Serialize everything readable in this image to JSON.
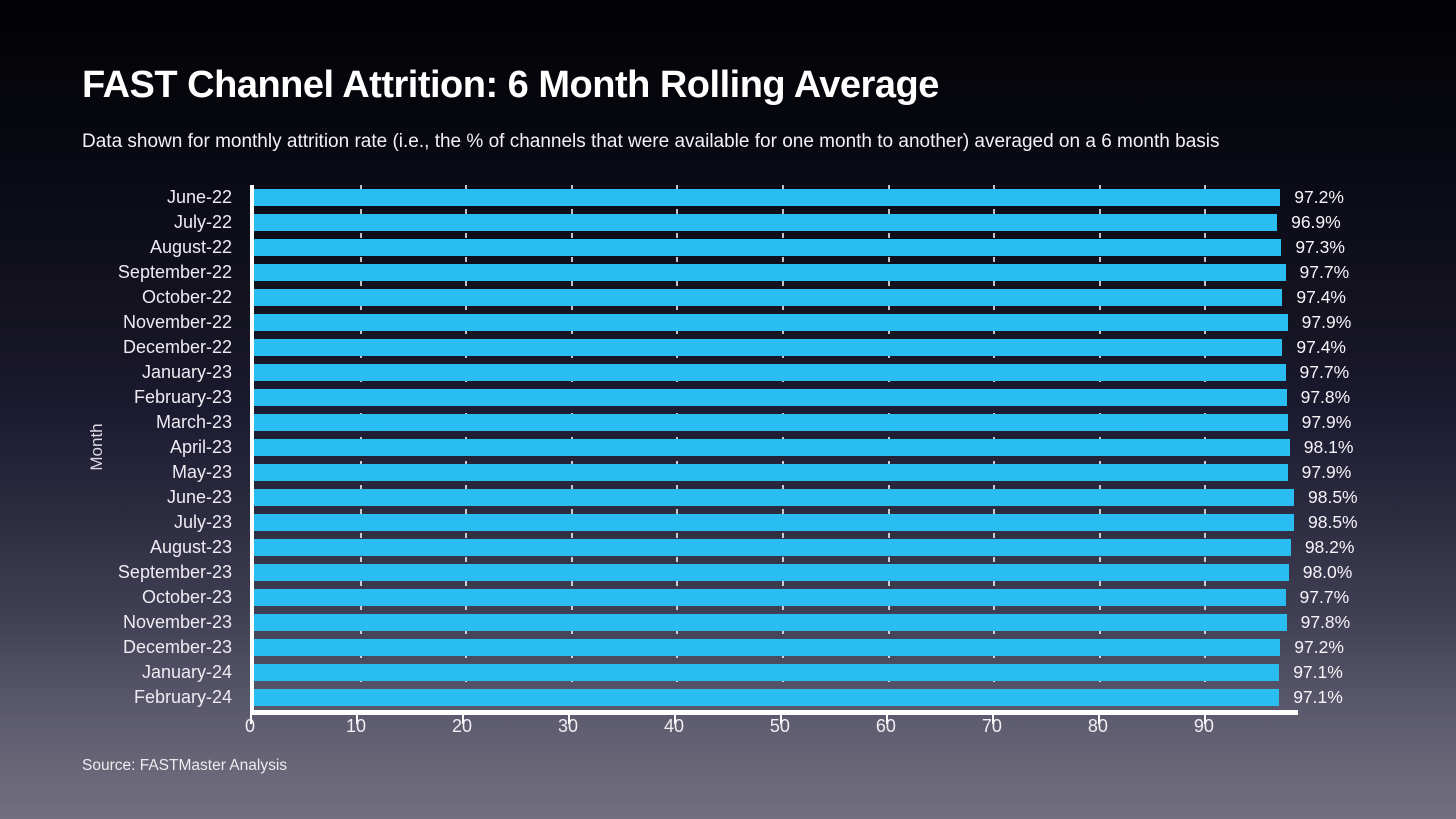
{
  "title": "FAST Channel Attrition: 6 Month Rolling Average",
  "subtitle": "Data shown for monthly attrition rate (i.e., the % of channels that were available for one month to another) averaged on a 6 month basis",
  "source": "Source: FASTMaster Analysis",
  "colors": {
    "bar": "#29bdf2",
    "axis": "#ffffff",
    "text": "#f2f1f5"
  },
  "chart_data": {
    "type": "bar",
    "orientation": "horizontal",
    "title": "FAST Channel Attrition: 6 Month Rolling Average",
    "xlabel": "",
    "ylabel": "Month",
    "categories": [
      "June-22",
      "July-22",
      "August-22",
      "September-22",
      "October-22",
      "November-22",
      "December-22",
      "January-23",
      "February-23",
      "March-23",
      "April-23",
      "May-23",
      "June-23",
      "July-23",
      "August-23",
      "September-23",
      "October-23",
      "November-23",
      "December-23",
      "January-24",
      "February-24"
    ],
    "values": [
      97.2,
      96.9,
      97.3,
      97.7,
      97.4,
      97.9,
      97.4,
      97.7,
      97.8,
      97.9,
      98.1,
      97.9,
      98.5,
      98.5,
      98.2,
      98.0,
      97.7,
      97.8,
      97.2,
      97.1,
      97.1
    ],
    "value_labels": [
      "97.2%",
      "96.9%",
      "97.3%",
      "97.7%",
      "97.4%",
      "97.9%",
      "97.4%",
      "97.7%",
      "97.8%",
      "97.9%",
      "98.1%",
      "97.9%",
      "98.5%",
      "98.5%",
      "98.2%",
      "98.0%",
      "97.7%",
      "97.8%",
      "97.2%",
      "97.1%",
      "97.1%"
    ],
    "xlim": [
      0,
      98.5
    ],
    "xticks": [
      0,
      10,
      20,
      30,
      40,
      50,
      60,
      70,
      80,
      90
    ],
    "grid": "vertical-dashed",
    "legend": "none"
  }
}
